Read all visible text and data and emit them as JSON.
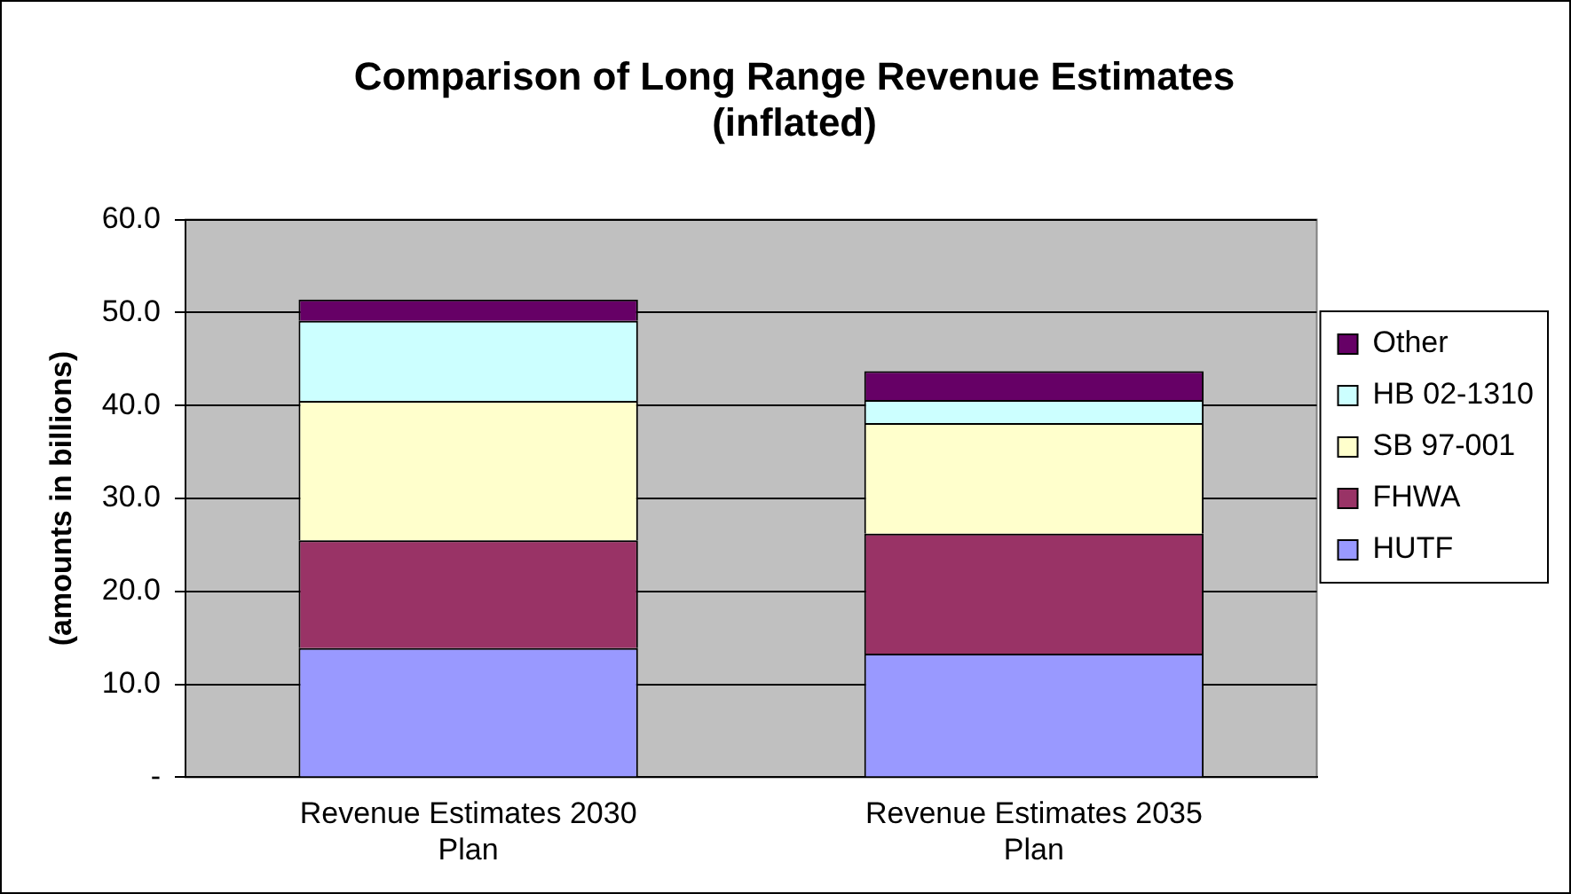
{
  "chart_data": {
    "type": "bar",
    "title": "Comparison of Long Range Revenue Estimates (inflated)",
    "ylabel": "(amounts in billions)",
    "categories": [
      "Revenue Estimates 2030 Plan",
      "Revenue Estimates 2035 Plan"
    ],
    "stacked": true,
    "series": [
      {
        "name": "HUTF",
        "color": "#9999ff",
        "values": [
          13.9,
          13.3
        ]
      },
      {
        "name": "FHWA",
        "color": "#993366",
        "values": [
          11.6,
          12.9
        ]
      },
      {
        "name": "SB 97-001",
        "color": "#ffffcc",
        "values": [
          15.0,
          11.9
        ]
      },
      {
        "name": "HB 02-1310",
        "color": "#ccffff",
        "values": [
          8.6,
          2.5
        ]
      },
      {
        "name": "Other",
        "color": "#660066",
        "values": [
          2.3,
          3.1
        ]
      }
    ],
    "ylim": [
      0,
      60
    ],
    "yticks": [
      {
        "value": 0,
        "label": "-"
      },
      {
        "value": 10,
        "label": "10.0"
      },
      {
        "value": 20,
        "label": "20.0"
      },
      {
        "value": 30,
        "label": "30.0"
      },
      {
        "value": 40,
        "label": "40.0"
      },
      {
        "value": 50,
        "label": "50.0"
      },
      {
        "value": 60,
        "label": "60.0"
      }
    ],
    "grid": "y",
    "legend": "right"
  }
}
